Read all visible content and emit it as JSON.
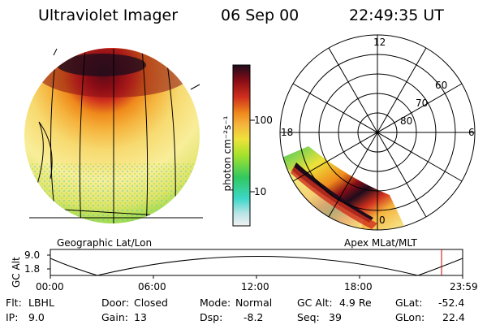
{
  "header": {
    "instrument": "Ultraviolet Imager",
    "date": "06 Sep 00",
    "time": "22:49:35 UT"
  },
  "colorbar": {
    "unit_label": "photon cm⁻²s⁻¹",
    "tick_100": "100",
    "tick_10": "10"
  },
  "polar_plot": {
    "mlt_labels": [
      "12",
      "18",
      "6",
      "0"
    ],
    "lat_labels": [
      "60",
      "70",
      "80"
    ]
  },
  "labels": {
    "left_projection": "Geographic Lat/Lon",
    "right_projection": "Apex MLat/MLT"
  },
  "altitude_strip": {
    "axis_label": "GC Alt",
    "y_top": "9.0",
    "y_bottom": "1.8",
    "times": [
      "00:00",
      "06:00",
      "12:00",
      "18:00",
      "23:59"
    ]
  },
  "status": {
    "flt_label": "Flt:",
    "flt_value": "LBHL",
    "ip_label": "IP:",
    "ip_value": "9.0",
    "door_label": "Door:",
    "door_value": "Closed",
    "gain_label": "Gain:",
    "gain_value": "13",
    "mode_label": "Mode:",
    "mode_value": "Normal",
    "dsp_label": "Dsp:",
    "dsp_value": "-8.2",
    "gcalt_label": "GC Alt:",
    "gcalt_value": "4.9 Re",
    "seq_label": "Seq:",
    "seq_value": "39",
    "glat_label": "GLat:",
    "glat_value": "-52.4",
    "glon_label": "GLon:",
    "glon_value": "22.4"
  },
  "colors": {
    "scale": [
      "#f2f2f2",
      "#b6e4e6",
      "#3cd7c8",
      "#31c860",
      "#a6e22c",
      "#efe23a",
      "#f5b43e",
      "#ef8a1c",
      "#cf2f1d",
      "#8a0d16",
      "#1e0c1c"
    ]
  }
}
